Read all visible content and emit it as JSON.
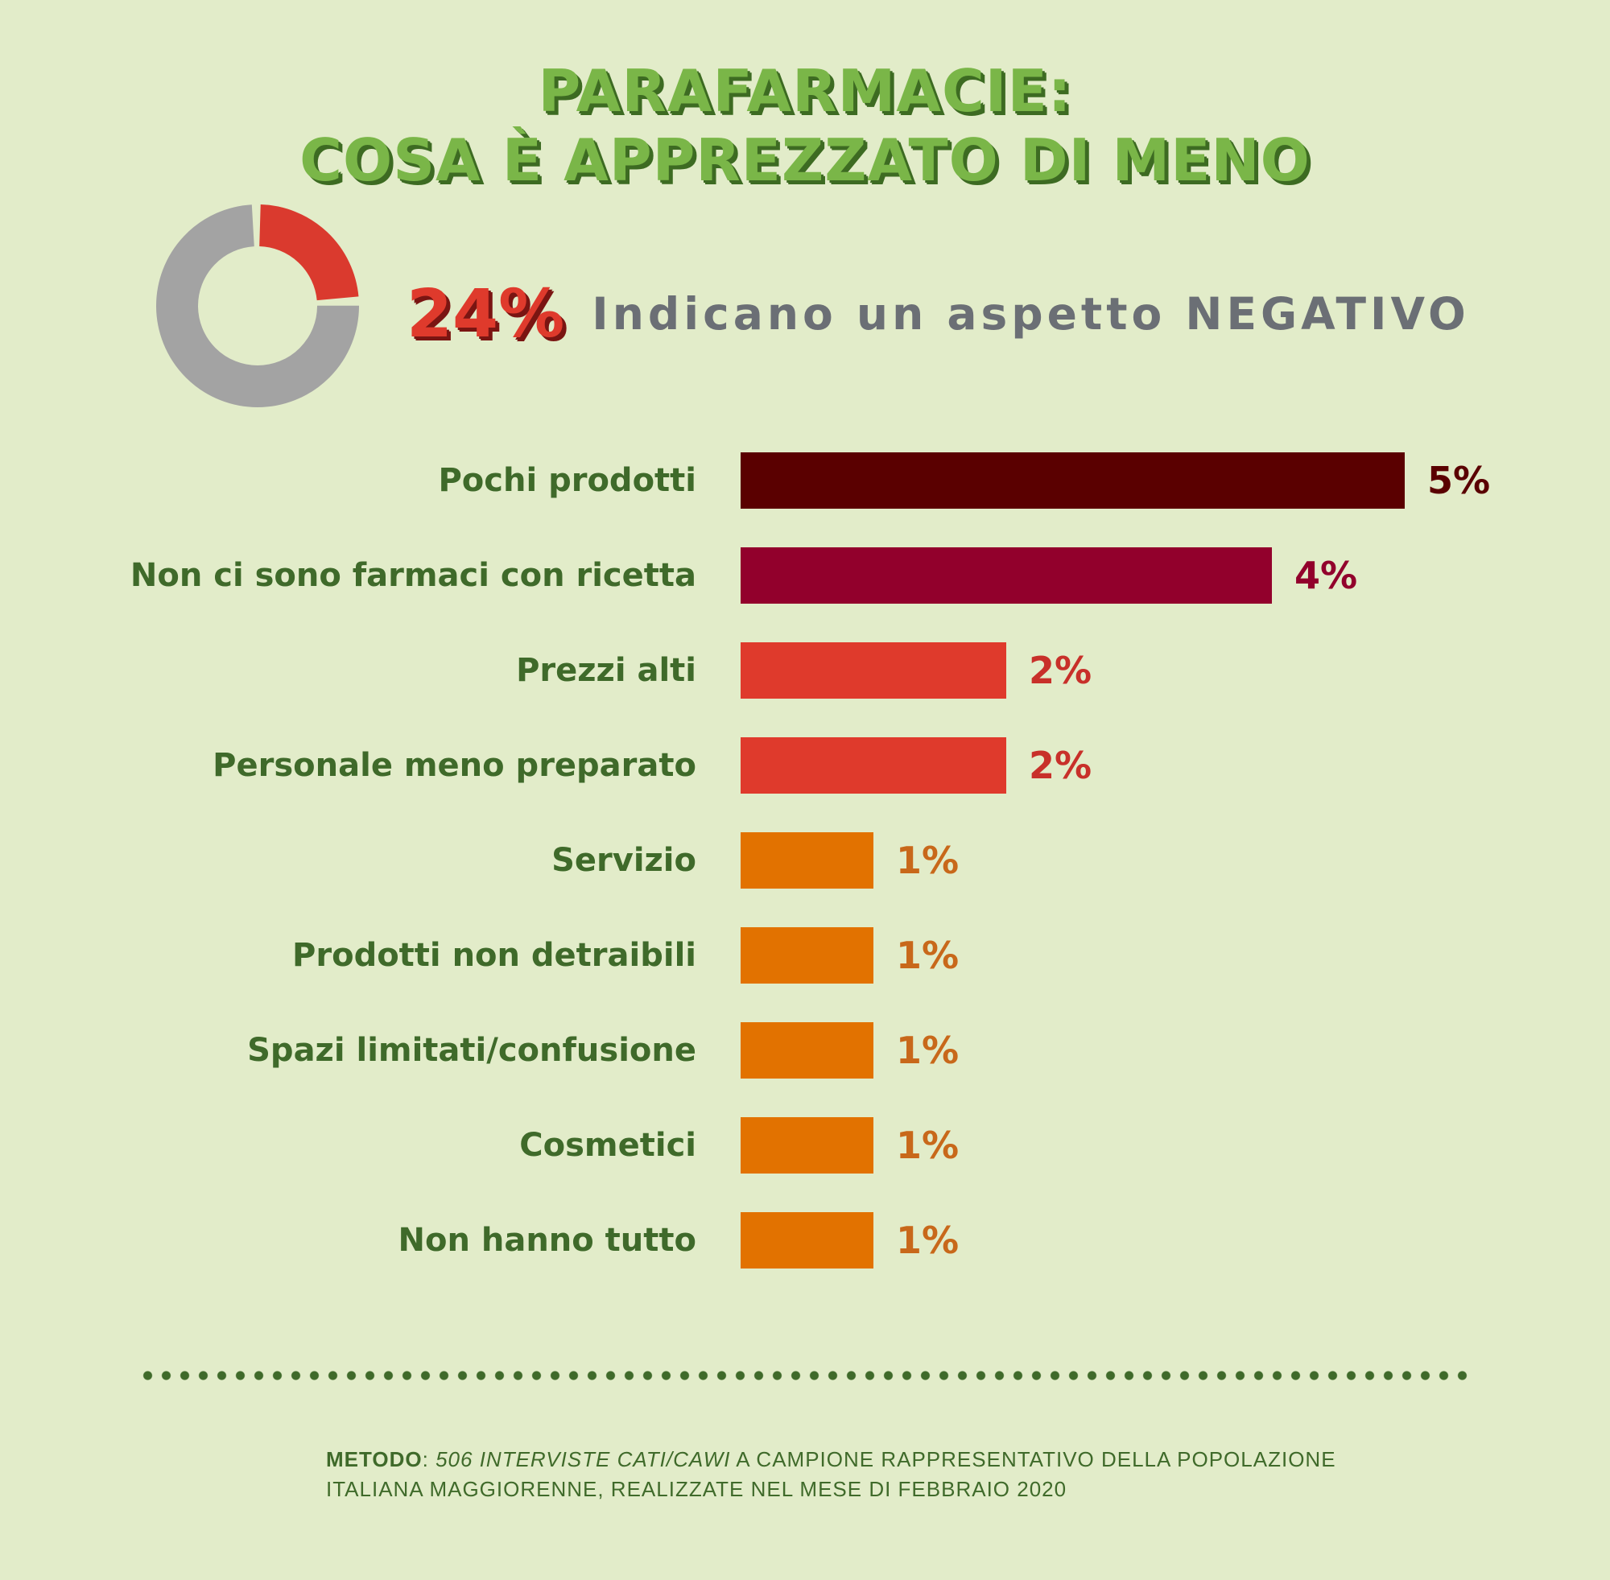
{
  "title": {
    "line1": "PARAFARMACIE:",
    "line2": "COSA È APPREZZATO DI MENO"
  },
  "headline": {
    "percent": "24%",
    "text": "Indicano un aspetto NEGATIVO"
  },
  "donut_data": {
    "highlight_fraction": 0.24,
    "highlight_color": "#da3a2e",
    "rest_color": "#a3a3a3"
  },
  "chart_data": {
    "type": "bar",
    "orientation": "horizontal",
    "categories": [
      "Pochi prodotti",
      "Non ci sono farmaci con ricetta",
      "Prezzi alti",
      "Personale meno preparato",
      "Servizio",
      "Prodotti non detraibili",
      "Spazi limitati/confusione",
      "Cosmetici",
      "Non hanno tutto"
    ],
    "values": [
      5,
      4,
      2,
      2,
      1,
      1,
      1,
      1,
      1
    ],
    "value_labels": [
      "5%",
      "4%",
      "2%",
      "2%",
      "1%",
      "1%",
      "1%",
      "1%",
      "1%"
    ],
    "bar_colors": [
      "#5a0000",
      "#92002c",
      "#df3a2c",
      "#df3a2c",
      "#e27200",
      "#e27200",
      "#e27200",
      "#e27200",
      "#e27200"
    ],
    "label_colors": [
      "#5a0000",
      "#92002c",
      "#c8302a",
      "#c8302a",
      "#c8681a",
      "#c8681a",
      "#c8681a",
      "#c8681a",
      "#c8681a"
    ],
    "xlim": [
      0,
      5
    ],
    "grid": false,
    "legend": "none"
  },
  "footnote": {
    "label": "METODO",
    "separator": ": ",
    "italic": "506 INTERVISTE CATI/CAWI",
    "text": " A CAMPIONE RAPPRESENTATIVO DELLA POPOLAZIONE ITALIANA MAGGIORENNE, REALIZZATE NEL MESE DI FEBBRAIO 2020"
  }
}
